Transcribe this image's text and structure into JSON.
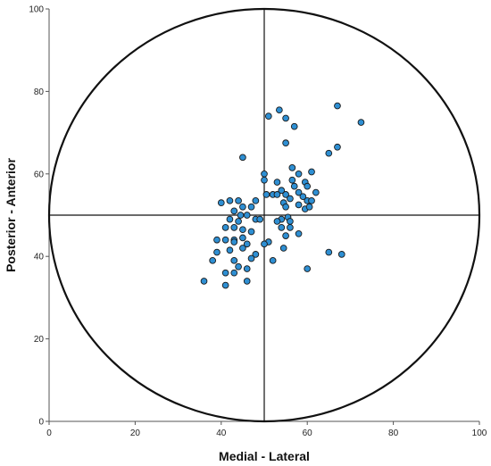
{
  "chart_data": {
    "type": "scatter",
    "title": "",
    "xlabel": "Medial - Lateral",
    "ylabel": "Posterior - Anterior",
    "xlim": [
      0,
      100
    ],
    "ylim": [
      0,
      100
    ],
    "xticks": [
      0,
      20,
      40,
      60,
      80,
      100
    ],
    "yticks": [
      0,
      20,
      40,
      60,
      80,
      100
    ],
    "grid": false,
    "legend": "none",
    "reference_lines": {
      "x": 50,
      "y": 50
    },
    "reference_circle": {
      "center": [
        50,
        50
      ],
      "radius": 50
    },
    "marker_color": "#2e8fd3",
    "marker_edge_color": "#1a1a1a",
    "points": [
      [
        67,
        76.5
      ],
      [
        53.5,
        75.5
      ],
      [
        72.5,
        72.5
      ],
      [
        51,
        74
      ],
      [
        55,
        73.5
      ],
      [
        57,
        71.5
      ],
      [
        55,
        67.5
      ],
      [
        67,
        66.5
      ],
      [
        65,
        65
      ],
      [
        45,
        64
      ],
      [
        56.5,
        61.5
      ],
      [
        50,
        60
      ],
      [
        58,
        60
      ],
      [
        61,
        60.5
      ],
      [
        50,
        58.5
      ],
      [
        53,
        58
      ],
      [
        56.5,
        58.5
      ],
      [
        59.5,
        58
      ],
      [
        57,
        57
      ],
      [
        60,
        57
      ],
      [
        54,
        56
      ],
      [
        55,
        55
      ],
      [
        58,
        55.5
      ],
      [
        62,
        55.5
      ],
      [
        50.5,
        55
      ],
      [
        52,
        55
      ],
      [
        53,
        55
      ],
      [
        56,
        54
      ],
      [
        59,
        54.5
      ],
      [
        60,
        53.5
      ],
      [
        61,
        53.5
      ],
      [
        48,
        53.5
      ],
      [
        54.5,
        53
      ],
      [
        40,
        53
      ],
      [
        42,
        53.5
      ],
      [
        44,
        53.5
      ],
      [
        45,
        52
      ],
      [
        47,
        52
      ],
      [
        55,
        52
      ],
      [
        58,
        52.5
      ],
      [
        59.5,
        51.5
      ],
      [
        60.5,
        52
      ],
      [
        43,
        51
      ],
      [
        44.5,
        50
      ],
      [
        46,
        50
      ],
      [
        48,
        49
      ],
      [
        49,
        49
      ],
      [
        54,
        49
      ],
      [
        55.5,
        49.5
      ],
      [
        56,
        48.5
      ],
      [
        42,
        49
      ],
      [
        44,
        48.5
      ],
      [
        53,
        48.5
      ],
      [
        41,
        47
      ],
      [
        43,
        47
      ],
      [
        45,
        46.5
      ],
      [
        47,
        46
      ],
      [
        54,
        47
      ],
      [
        56,
        47
      ],
      [
        39,
        44
      ],
      [
        41,
        44
      ],
      [
        43,
        44
      ],
      [
        45,
        44.5
      ],
      [
        55,
        45
      ],
      [
        58,
        45.5
      ],
      [
        43,
        43.5
      ],
      [
        46,
        43
      ],
      [
        51,
        43.5
      ],
      [
        50,
        43
      ],
      [
        39,
        41
      ],
      [
        42,
        41.5
      ],
      [
        45,
        42
      ],
      [
        48,
        40.5
      ],
      [
        54.5,
        42
      ],
      [
        65,
        41
      ],
      [
        68,
        40.5
      ],
      [
        38,
        39
      ],
      [
        43,
        39
      ],
      [
        47,
        39.5
      ],
      [
        52,
        39
      ],
      [
        44,
        37.5
      ],
      [
        46,
        37
      ],
      [
        60,
        37
      ],
      [
        41,
        36
      ],
      [
        43,
        36
      ],
      [
        46,
        34
      ],
      [
        36,
        34
      ],
      [
        41,
        33
      ]
    ]
  }
}
